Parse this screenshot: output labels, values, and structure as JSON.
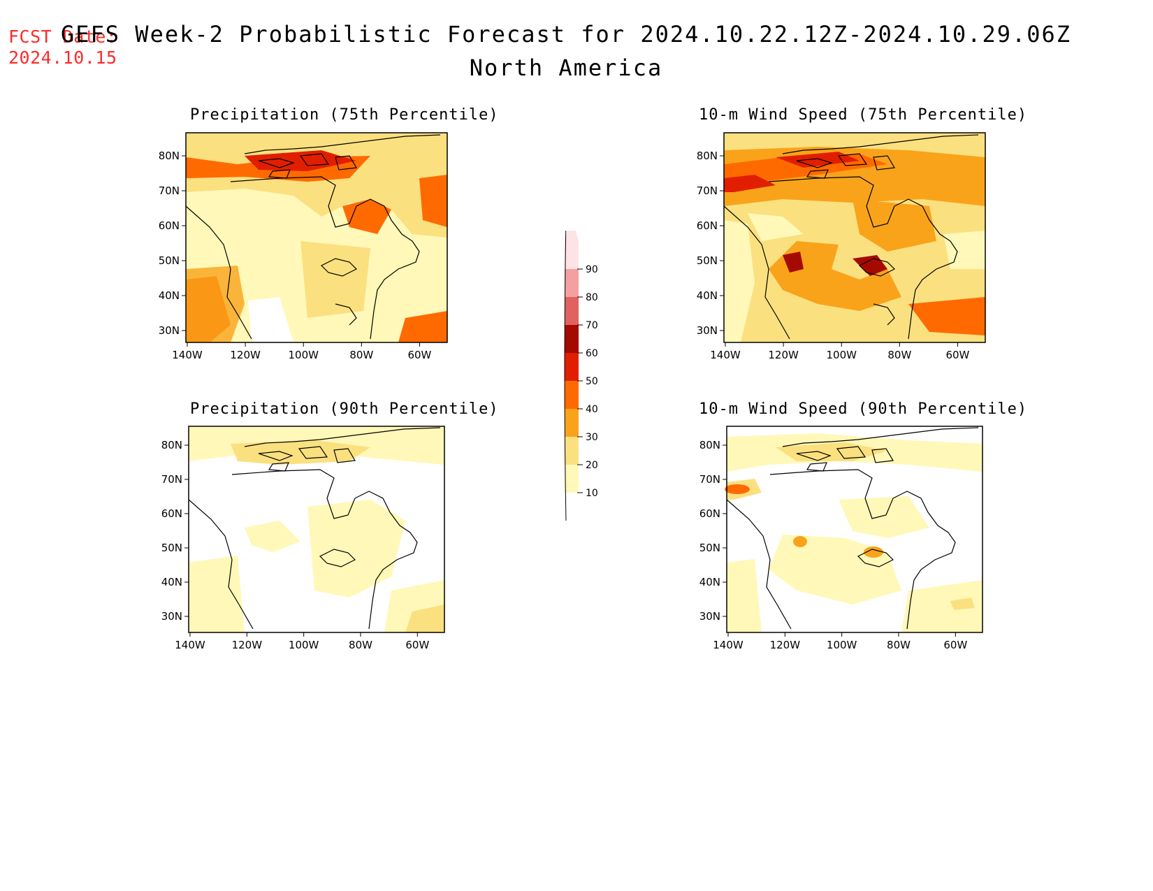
{
  "fcst_date": {
    "label": "FCST Date:",
    "value": "2024.10.15"
  },
  "title": "GEFS Week-2 Probabilistic Forecast for 2024.10.22.12Z-2024.10.29.06Z",
  "subtitle": "North America",
  "panels": [
    {
      "id": "precip75",
      "title": "Precipitation (75th Percentile)"
    },
    {
      "id": "wind75",
      "title": "10-m Wind Speed (75th Percentile)"
    },
    {
      "id": "precip90",
      "title": "Precipitation (90th Percentile)"
    },
    {
      "id": "wind90",
      "title": "10-m Wind Speed (90th Percentile)"
    }
  ],
  "lat_labels": [
    "80N",
    "70N",
    "60N",
    "50N",
    "40N",
    "30N"
  ],
  "lon_labels": [
    "140W",
    "120W",
    "100W",
    "80W",
    "60W"
  ],
  "colorbar": {
    "levels": [
      "10",
      "20",
      "30",
      "40",
      "50",
      "60",
      "70",
      "80",
      "90"
    ],
    "colors": [
      "#fff8b8",
      "#fbe080",
      "#f9a31a",
      "#ff6a00",
      "#e11f00",
      "#a50a00",
      "#e16060",
      "#f4a0a0",
      "#fde2e6"
    ]
  }
}
